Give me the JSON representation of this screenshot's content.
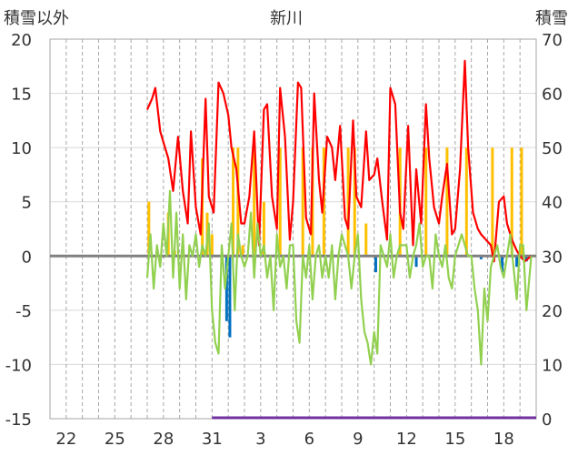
{
  "chart_data": {
    "type": "line",
    "title": "新川",
    "left_axis_label": "積雪以外",
    "right_axis_label": "積雪",
    "left_ylim": [
      -15,
      20
    ],
    "left_ticks": [
      20,
      15,
      10,
      5,
      0,
      -5,
      -10,
      -15
    ],
    "right_ylim": [
      0,
      70
    ],
    "right_ticks": [
      70,
      60,
      50,
      40,
      30,
      20,
      10,
      0
    ],
    "x_range": [
      0,
      30
    ],
    "x_tick_labels": [
      "22",
      "25",
      "28",
      "31",
      "3",
      "6",
      "9",
      "12",
      "15",
      "18"
    ],
    "x_tick_positions": [
      1,
      4,
      7,
      10,
      13,
      16,
      19,
      22,
      25,
      28
    ],
    "grid": true,
    "colors": {
      "snow_depth": "#ff0000",
      "temperature": "#92d050",
      "bar_positive": "#ffc000",
      "bar_negative": "#0070c0",
      "baseline": "#7030a0",
      "zero_line": "#808080"
    },
    "series": [
      {
        "key": "snow_depth",
        "axis": "right",
        "x": [
          6.0,
          6.3,
          6.5,
          6.8,
          7.0,
          7.3,
          7.6,
          7.9,
          8.2,
          8.5,
          8.7,
          9.0,
          9.3,
          9.6,
          9.8,
          10.1,
          10.4,
          10.7,
          11.0,
          11.2,
          11.5,
          11.8,
          12.0,
          12.3,
          12.6,
          12.9,
          13.2,
          13.4,
          13.7,
          14.0,
          14.2,
          14.5,
          14.8,
          15.0,
          15.3,
          15.5,
          15.8,
          16.1,
          16.3,
          16.6,
          16.8,
          17.1,
          17.4,
          17.6,
          17.9,
          18.2,
          18.4,
          18.7,
          18.9,
          19.2,
          19.5,
          19.7,
          20.0,
          20.2,
          20.5,
          20.8,
          21.0,
          21.3,
          21.6,
          21.8,
          22.1,
          22.4,
          22.6,
          22.9,
          23.2,
          23.4,
          23.7,
          24.0,
          24.2,
          24.5,
          24.8,
          25.0,
          25.3,
          25.6,
          25.8,
          26.1,
          26.4,
          26.6,
          26.9,
          27.2,
          27.4,
          27.7,
          28.0,
          28.2,
          28.5,
          28.8,
          29.0,
          29.3,
          29.7
        ],
        "y": [
          57,
          59,
          61,
          53,
          51,
          48,
          42,
          52,
          42,
          36,
          53,
          39,
          34,
          59,
          41,
          38,
          62,
          60,
          56,
          50,
          46,
          36,
          36,
          41,
          53,
          32,
          57,
          58,
          41,
          35,
          61,
          52,
          33,
          40,
          62,
          61,
          37,
          34,
          60,
          44,
          38,
          52,
          50,
          44,
          54,
          37,
          35,
          55,
          41,
          39,
          53,
          44,
          45,
          48,
          40,
          33,
          61,
          58,
          38,
          35,
          54,
          32,
          46,
          36,
          58,
          48,
          39,
          36,
          41,
          47,
          34,
          35,
          46,
          66,
          50,
          38,
          35,
          34,
          33,
          32,
          29,
          40,
          41,
          36,
          33,
          31,
          30,
          29,
          30
        ]
      },
      {
        "key": "temperature",
        "axis": "left",
        "x": [
          6.0,
          6.2,
          6.4,
          6.6,
          6.8,
          7.0,
          7.2,
          7.4,
          7.6,
          7.8,
          8.0,
          8.2,
          8.4,
          8.6,
          8.8,
          9.0,
          9.2,
          9.4,
          9.6,
          9.8,
          10.0,
          10.2,
          10.4,
          10.6,
          10.8,
          11.0,
          11.2,
          11.4,
          11.6,
          11.8,
          12.0,
          12.2,
          12.4,
          12.6,
          12.8,
          13.0,
          13.2,
          13.4,
          13.6,
          13.8,
          14.0,
          14.2,
          14.4,
          14.6,
          14.8,
          15.0,
          15.2,
          15.4,
          15.6,
          15.8,
          16.0,
          16.2,
          16.4,
          16.6,
          16.8,
          17.0,
          17.2,
          17.4,
          17.6,
          17.8,
          18.0,
          18.2,
          18.4,
          18.6,
          18.8,
          19.0,
          19.2,
          19.4,
          19.6,
          19.8,
          20.0,
          20.2,
          20.4,
          20.6,
          20.8,
          21.0,
          21.2,
          21.4,
          21.6,
          21.8,
          22.0,
          22.2,
          22.4,
          22.6,
          22.8,
          23.0,
          23.2,
          23.4,
          23.6,
          23.8,
          24.0,
          24.2,
          24.4,
          24.6,
          24.8,
          25.0,
          25.2,
          25.4,
          25.6,
          25.8,
          26.0,
          26.2,
          26.4,
          26.6,
          26.8,
          27.0,
          27.2,
          27.4,
          27.6,
          27.8,
          28.0,
          28.2,
          28.4,
          28.6,
          28.8,
          29.0,
          29.2,
          29.4,
          29.7
        ],
        "y": [
          -2,
          2,
          -3,
          1,
          -1,
          3,
          0,
          6,
          -2,
          4,
          -3,
          2,
          -4,
          1,
          0,
          2,
          -1,
          1,
          0,
          3,
          -5,
          -8,
          -9,
          1,
          -3,
          0,
          3,
          -5,
          2,
          0,
          -1,
          0,
          4,
          -2,
          3,
          0,
          1,
          -2,
          0,
          -5,
          2,
          -1,
          0,
          -3,
          1,
          1,
          -6,
          -8,
          0,
          -2,
          1,
          -4,
          0,
          1,
          -2,
          0,
          -2,
          1,
          -4,
          0,
          2,
          1,
          0,
          -3,
          0,
          2,
          -4,
          -7,
          -8,
          -10,
          -7,
          -9,
          1,
          0,
          -1,
          2,
          -2,
          0,
          1,
          1,
          1,
          -2,
          0,
          1,
          3,
          -1,
          0,
          0,
          -3,
          2,
          0,
          -1,
          1,
          -2,
          -3,
          0,
          1,
          2,
          1,
          0,
          0,
          -3,
          -5,
          -10,
          -3,
          -6,
          -1,
          0,
          1,
          -1,
          -2,
          0,
          2,
          -1,
          -4,
          1,
          1,
          -5,
          0
        ]
      }
    ],
    "bars": {
      "axis": "left",
      "x": [
        6.1,
        7.3,
        7.7,
        9.4,
        9.7,
        10.0,
        10.9,
        11.1,
        11.3,
        11.6,
        11.9,
        12.6,
        13.2,
        14.2,
        15.6,
        16.2,
        16.9,
        17.0,
        18.4,
        18.8,
        19.5,
        20.1,
        21.6,
        22.6,
        23.2,
        24.5,
        25.7,
        26.6,
        27.3,
        27.9,
        28.5,
        28.8,
        29.1,
        29.4
      ],
      "y": [
        5,
        4,
        0.5,
        9,
        4,
        2,
        -6,
        -7.5,
        10,
        10,
        1,
        10,
        5,
        10,
        10,
        10,
        10,
        -0.5,
        10,
        10,
        3,
        -1.5,
        10,
        -1,
        10,
        10,
        10,
        -0.3,
        10,
        -1.5,
        10,
        -1,
        10,
        -0.5
      ]
    }
  }
}
